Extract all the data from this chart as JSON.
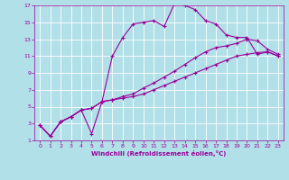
{
  "xlabel": "Windchill (Refroidissement éolien,°C)",
  "background_color": "#b2e0e8",
  "grid_color": "#ffffff",
  "line_color": "#990099",
  "xlim": [
    -0.5,
    23.5
  ],
  "ylim": [
    1,
    17
  ],
  "xticks": [
    0,
    1,
    2,
    3,
    4,
    5,
    6,
    7,
    8,
    9,
    10,
    11,
    12,
    13,
    14,
    15,
    16,
    17,
    18,
    19,
    20,
    21,
    22,
    23
  ],
  "yticks": [
    1,
    3,
    5,
    7,
    9,
    11,
    13,
    15,
    17
  ],
  "line1_x": [
    0,
    1,
    2,
    3,
    4,
    5,
    6,
    7,
    8,
    9,
    10,
    11,
    12,
    13,
    14,
    15,
    16,
    17,
    18,
    19,
    20,
    21,
    22,
    23
  ],
  "line1_y": [
    2.8,
    1.5,
    3.2,
    3.8,
    4.6,
    4.8,
    5.6,
    5.8,
    6.0,
    6.2,
    6.5,
    7.0,
    7.5,
    8.0,
    8.5,
    9.0,
    9.5,
    10.0,
    10.5,
    11.0,
    11.2,
    11.4,
    11.5,
    11.0
  ],
  "line2_x": [
    0,
    1,
    2,
    3,
    4,
    5,
    6,
    7,
    8,
    9,
    10,
    11,
    12,
    13,
    14,
    15,
    16,
    17,
    18,
    19,
    20,
    21,
    22,
    23
  ],
  "line2_y": [
    2.8,
    1.5,
    3.2,
    3.8,
    4.6,
    4.8,
    5.6,
    5.8,
    6.2,
    6.5,
    7.2,
    7.8,
    8.5,
    9.2,
    10.0,
    10.8,
    11.5,
    12.0,
    12.2,
    12.5,
    13.0,
    12.8,
    11.8,
    11.2
  ],
  "line3_x": [
    0,
    1,
    2,
    3,
    4,
    5,
    6,
    7,
    8,
    9,
    10,
    11,
    12,
    13,
    14,
    15,
    16,
    17,
    18,
    19,
    20,
    21,
    22,
    23
  ],
  "line3_y": [
    2.8,
    1.5,
    3.2,
    3.8,
    4.6,
    1.8,
    5.6,
    11.0,
    13.2,
    14.8,
    15.0,
    15.2,
    14.5,
    17.2,
    17.0,
    16.5,
    15.2,
    14.8,
    13.5,
    13.2,
    13.2,
    11.2,
    11.5,
    11.0
  ],
  "marker": "+",
  "markersize": 3,
  "linewidth": 0.8,
  "tick_fontsize": 4.5,
  "xlabel_fontsize": 5.0
}
